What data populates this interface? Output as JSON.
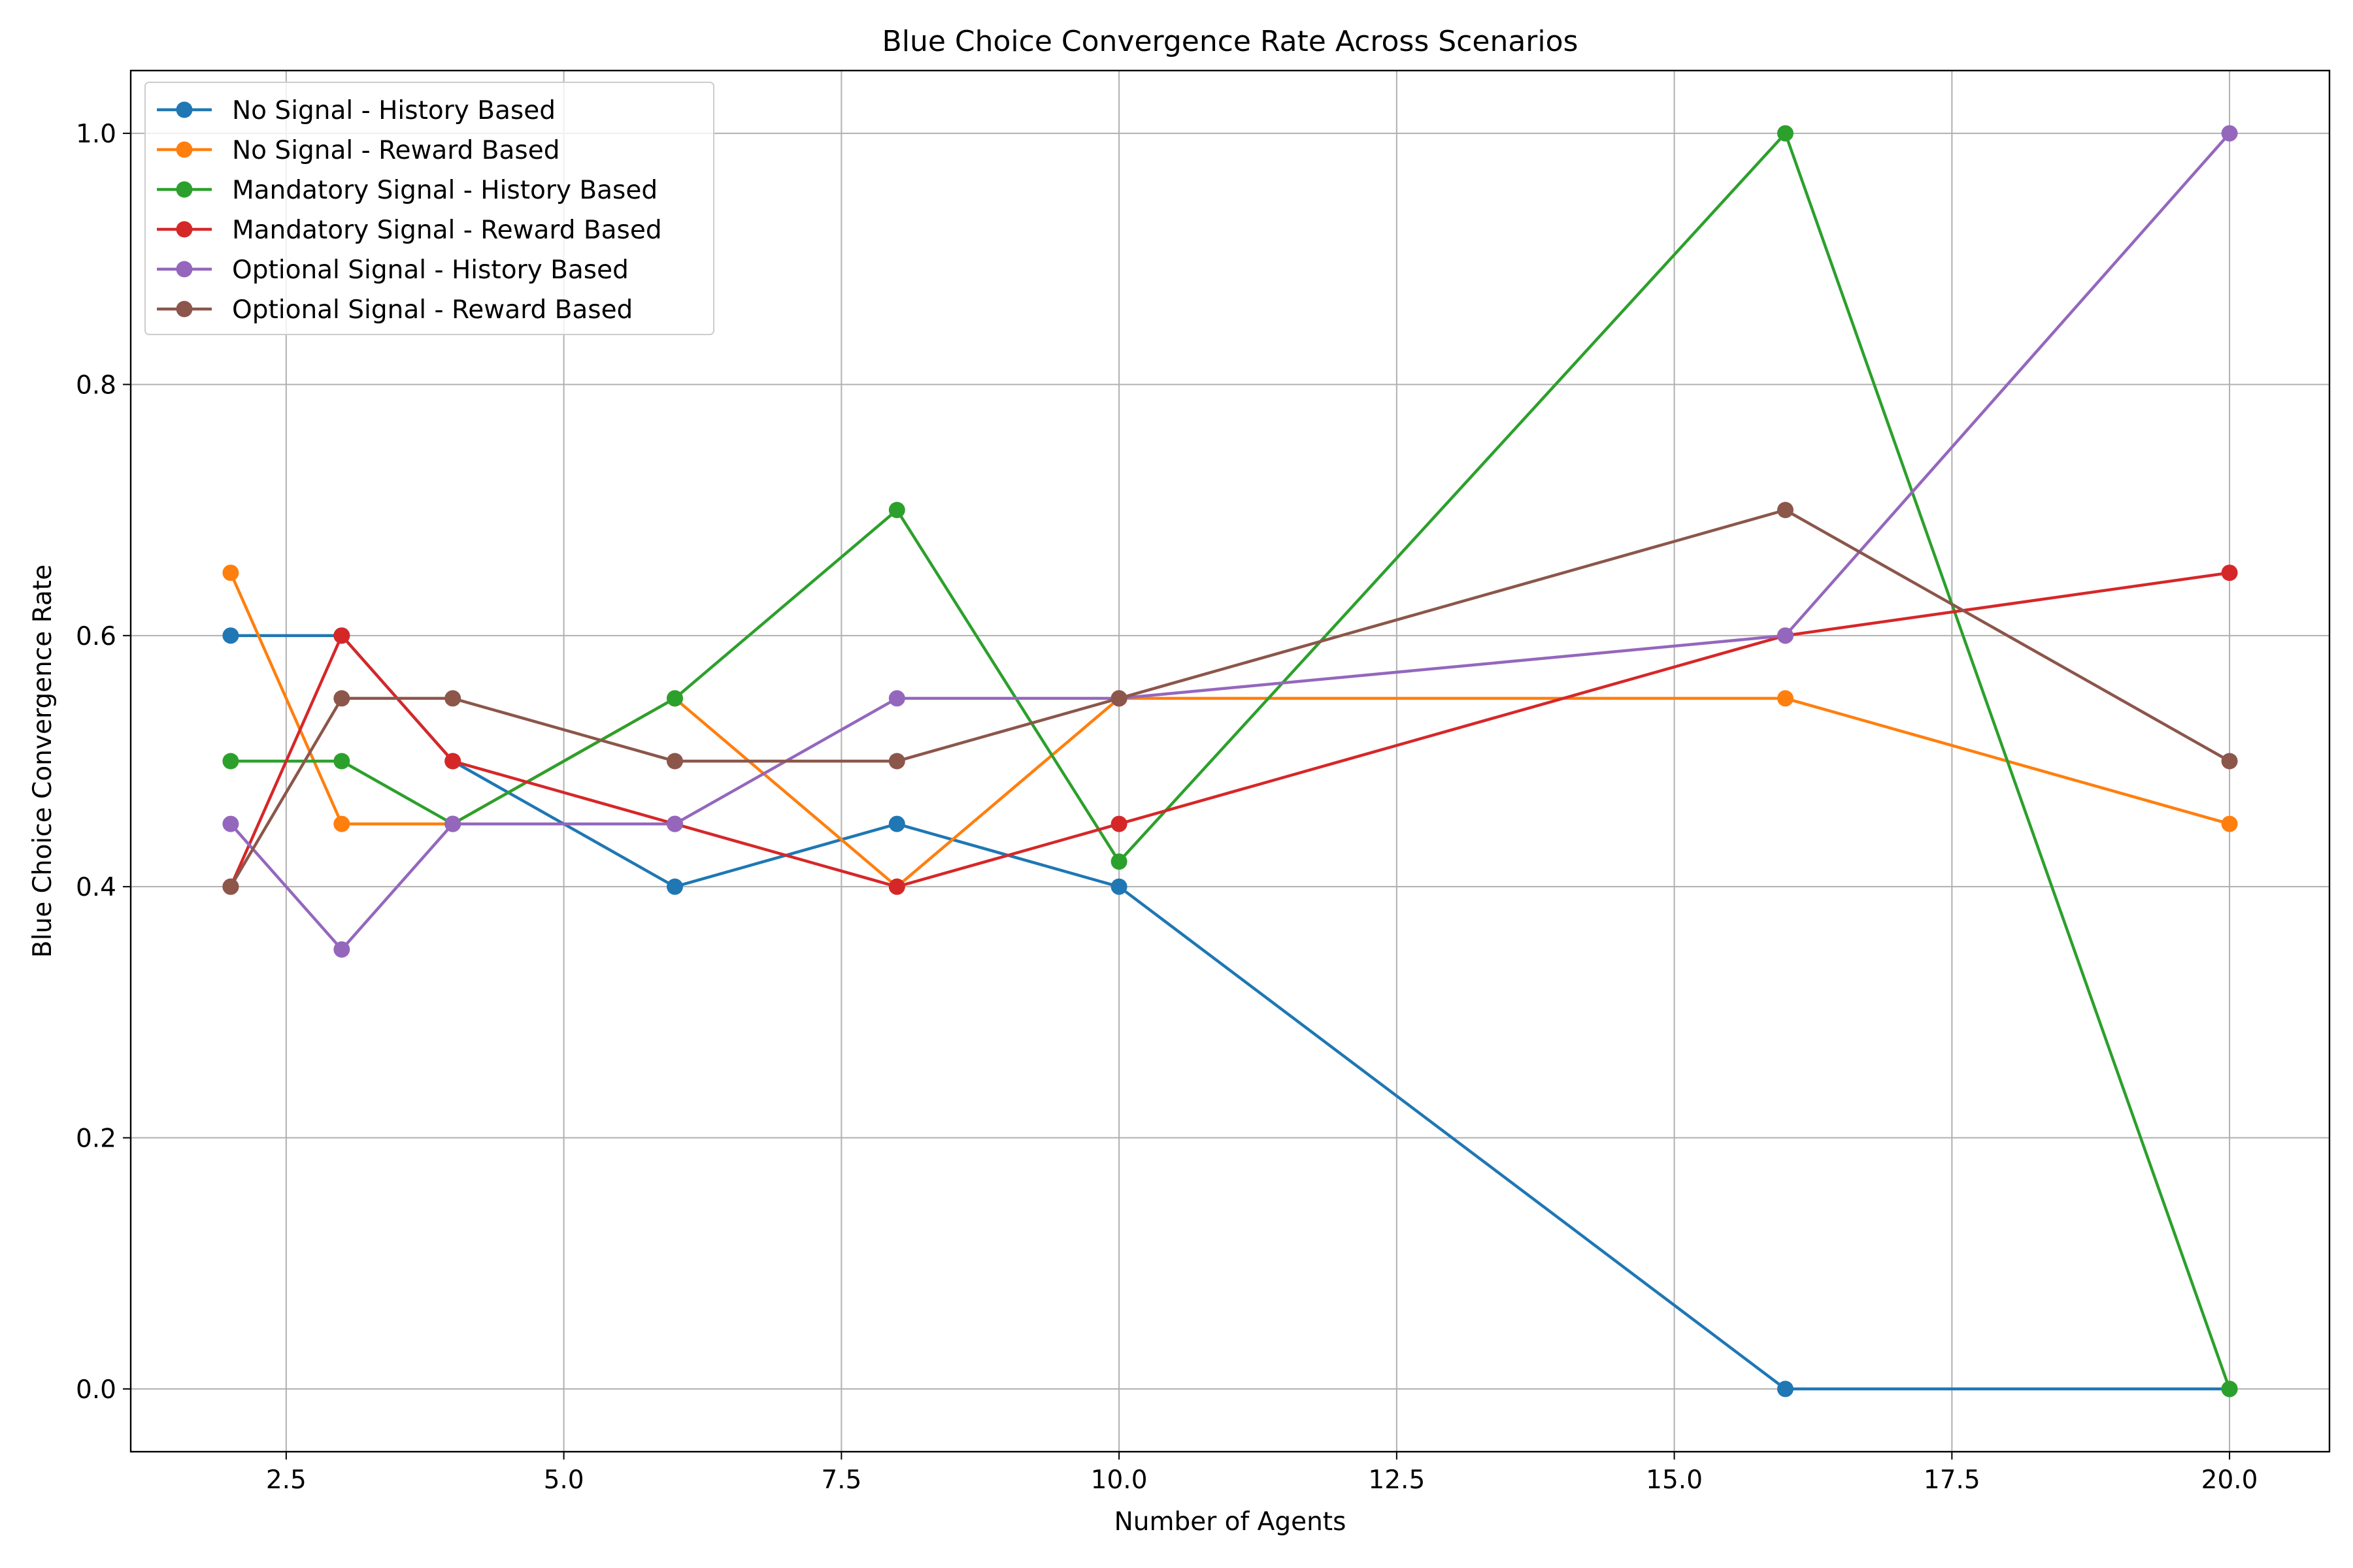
{
  "chart_data": {
    "type": "line",
    "title": "Blue Choice Convergence Rate Across Scenarios",
    "xlabel": "Number of Agents",
    "ylabel": "Blue Choice Convergence Rate",
    "xlim": [
      1.1,
      20.9
    ],
    "ylim": [
      -0.05,
      1.05
    ],
    "xticks": [
      2.5,
      5.0,
      7.5,
      10.0,
      12.5,
      15.0,
      17.5,
      20.0
    ],
    "xtick_labels": [
      "2.5",
      "5.0",
      "7.5",
      "10.0",
      "12.5",
      "15.0",
      "17.5",
      "20.0"
    ],
    "yticks": [
      0.0,
      0.2,
      0.4,
      0.6,
      0.8,
      1.0
    ],
    "ytick_labels": [
      "0.0",
      "0.2",
      "0.4",
      "0.6",
      "0.8",
      "1.0"
    ],
    "grid": true,
    "legend_position": "top-left",
    "x": [
      2,
      3,
      4,
      6,
      8,
      10,
      16,
      20
    ],
    "series": [
      {
        "name": "No Signal - History Based",
        "color": "#1f77b4",
        "values": [
          0.6,
          0.6,
          0.5,
          0.4,
          0.45,
          0.4,
          0.0,
          0.0
        ]
      },
      {
        "name": "No Signal - Reward Based",
        "color": "#ff7f0e",
        "values": [
          0.65,
          0.45,
          0.45,
          0.55,
          0.4,
          0.55,
          0.55,
          0.45
        ]
      },
      {
        "name": "Mandatory Signal - History Based",
        "color": "#2ca02c",
        "values": [
          0.5,
          0.5,
          0.45,
          0.55,
          0.7,
          0.42,
          1.0,
          0.0
        ]
      },
      {
        "name": "Mandatory Signal - Reward Based",
        "color": "#d62728",
        "values": [
          0.4,
          0.6,
          0.5,
          0.45,
          0.4,
          0.45,
          0.6,
          0.65
        ]
      },
      {
        "name": "Optional Signal - History Based",
        "color": "#9467bd",
        "values": [
          0.45,
          0.35,
          0.45,
          0.45,
          0.55,
          0.55,
          0.6,
          1.0
        ]
      },
      {
        "name": "Optional Signal - Reward Based",
        "color": "#8c564b",
        "values": [
          0.4,
          0.55,
          0.55,
          0.5,
          0.5,
          0.55,
          0.7,
          0.5
        ]
      }
    ]
  }
}
